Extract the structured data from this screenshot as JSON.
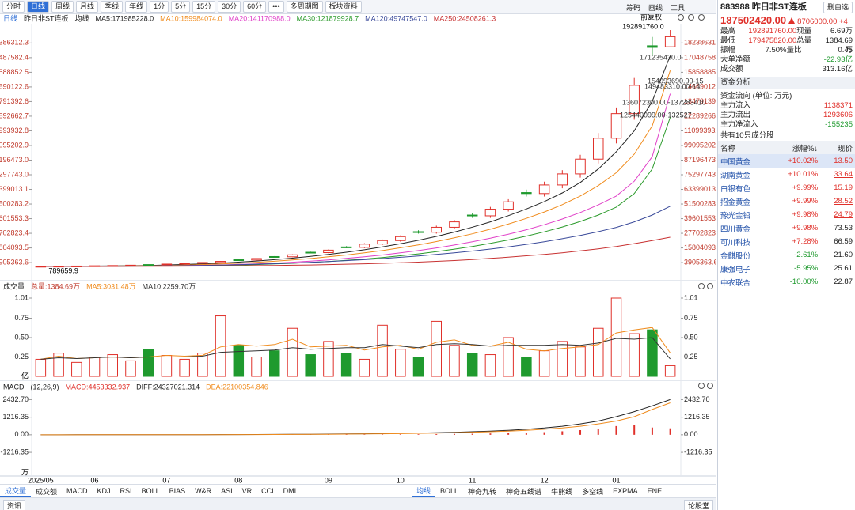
{
  "toolbar": {
    "periods": [
      "分时",
      "日线",
      "周线",
      "月线",
      "季线",
      "年线",
      "1分",
      "5分",
      "15分",
      "30分",
      "60分"
    ],
    "more": "•••",
    "multi": "多周期图",
    "sector": "板块资料",
    "right": [
      "筹码",
      "画线",
      "工具"
    ]
  },
  "chart_data": [
    {
      "type": "candlestick",
      "period": "日线",
      "title": "昨日非ST连板",
      "ma_label": "均线",
      "adjust": "前复权",
      "categories": [
        "2025/05",
        null,
        null,
        "06",
        null,
        null,
        null,
        "07",
        null,
        null,
        null,
        "08",
        null,
        null,
        null,
        null,
        "09",
        null,
        null,
        null,
        "10",
        null,
        null,
        null,
        "11",
        null,
        null,
        null,
        "12",
        null,
        null,
        null,
        "01",
        null,
        null,
        null
      ],
      "open": [
        820000,
        900000,
        1000000,
        1150000,
        1300000,
        1500000,
        2300000,
        2200000,
        2700000,
        3400000,
        4000000,
        6200000,
        6000000,
        8800000,
        8600000,
        12300000,
        12000000,
        16600000,
        16300000,
        19000000,
        21800000,
        29000000,
        28600000,
        32600000,
        42500000,
        41900000,
        47300000,
        60800000,
        60000000,
        67000000,
        76000000,
        88000000,
        105000000,
        125000000,
        180100000,
        179300000
      ],
      "high": [
        936000,
        1040000,
        1144000,
        1352000,
        1560000,
        1872000,
        2392000,
        2808000,
        3432000,
        4160000,
        5096000,
        6448000,
        7488000,
        9152000,
        10608000,
        12792000,
        14560000,
        17264000,
        19656000,
        22672000,
        26000000,
        30160000,
        33904000,
        38480000,
        44200000,
        49192000,
        55432000,
        63232000,
        69680000,
        79040000,
        91520000,
        109200000,
        130000000,
        153920000,
        187304000,
        192891760
      ],
      "low": [
        789659.9,
        864000,
        960000,
        1104000,
        1248000,
        1440000,
        2112000,
        2112000,
        2592000,
        3264000,
        3840000,
        5760000,
        5760000,
        8256000,
        8256000,
        11520000,
        11520000,
        15648000,
        15648000,
        18240000,
        20928000,
        27456000,
        27456000,
        31296000,
        40224000,
        40224000,
        45408000,
        57600000,
        57600000,
        64320000,
        72960000,
        84480000,
        100800000,
        120000000,
        171644563,
        179475820
      ],
      "close": [
        900000,
        1000000,
        1100000,
        1300000,
        1500000,
        1800000,
        2200000,
        2700000,
        3300000,
        4000000,
        4900000,
        6000000,
        7200000,
        8600000,
        10200000,
        12000000,
        14000000,
        16300000,
        18900000,
        21800000,
        25000000,
        28600000,
        32600000,
        37000000,
        41900000,
        47300000,
        53300000,
        60000000,
        67000000,
        76000000,
        88000000,
        105000000,
        125000000,
        148000000,
        178796420,
        187502420
      ],
      "up_color": "#e0302a",
      "down_color": "#1f9a2e",
      "ylim": [
        -7600000,
        192900000
      ],
      "yticks": [
        3905363.6,
        15804093.5,
        27702823.4,
        39601553.3,
        51500283.2,
        63399013.1,
        {
          "value": 75297743,
          "label": "75297743.0"
        },
        {
          "value": 87196473,
          "label": "87196473.0"
        },
        99095202.9,
        110993932.8,
        122892662.7,
        134791392.6,
        146690122.6,
        158588852.5,
        170487582.4,
        182386312.3
      ],
      "series": [
        {
          "name": "MA5:171985228.0",
          "color": "#222222",
          "values": [
            900000,
            950000,
            1000000,
            1100000,
            1200000,
            1400000,
            1600000,
            2000000,
            2400000,
            2900000,
            3500000,
            4300000,
            5200000,
            6300000,
            7500000,
            8900000,
            10500000,
            12300000,
            14300000,
            16600000,
            19200000,
            22000000,
            25200000,
            28700000,
            32700000,
            37000000,
            42000000,
            47500000,
            53500000,
            60500000,
            69000000,
            80000000,
            94000000,
            111000000,
            135000000,
            171985228
          ]
        },
        {
          "name": "MA10:159984074.0",
          "color": "#f08c1e",
          "values": [
            900000,
            920000,
            960000,
            1000000,
            1100000,
            1200000,
            1350000,
            1600000,
            1900000,
            2300000,
            2800000,
            3400000,
            4100000,
            5000000,
            6000000,
            7200000,
            8600000,
            10100000,
            11800000,
            13700000,
            15900000,
            18300000,
            21000000,
            24000000,
            27300000,
            31000000,
            35200000,
            39800000,
            45000000,
            51000000,
            58000000,
            66500000,
            77000000,
            92000000,
            115000000,
            159984074
          ]
        },
        {
          "name": "MA20:141170988.0",
          "color": "#e040c8",
          "values": [
            900000,
            910000,
            930000,
            960000,
            1000000,
            1050000,
            1120000,
            1250000,
            1450000,
            1700000,
            2000000,
            2400000,
            2900000,
            3500000,
            4200000,
            5100000,
            6100000,
            7300000,
            8600000,
            10100000,
            11800000,
            13700000,
            15800000,
            18200000,
            20800000,
            23700000,
            27000000,
            30600000,
            34700000,
            39300000,
            44600000,
            50800000,
            58000000,
            70000000,
            90000000,
            141170988
          ]
        },
        {
          "name": "MA30:121879928.7",
          "color": "#2a9a2a",
          "values": [
            900000,
            900000,
            910000,
            930000,
            960000,
            1000000,
            1050000,
            1130000,
            1250000,
            1400000,
            1600000,
            1900000,
            2300000,
            2800000,
            3300000,
            4000000,
            4800000,
            5700000,
            6800000,
            8000000,
            9400000,
            11000000,
            12800000,
            14800000,
            17000000,
            19500000,
            22300000,
            25400000,
            28900000,
            32800000,
            37300000,
            42500000,
            49000000,
            60000000,
            80000000,
            121879928.7
          ]
        },
        {
          "name": "MA120:49747547.0",
          "color": "#3a4a9a",
          "values": [
            800000,
            820000,
            850000,
            900000,
            950000,
            1000000,
            1100000,
            1200000,
            1400000,
            1600000,
            1900000,
            2200000,
            2600000,
            3000000,
            3500000,
            4100000,
            4800000,
            5500000,
            6300000,
            7200000,
            8200000,
            9300000,
            10500000,
            11800000,
            13300000,
            14900000,
            16700000,
            18700000,
            20900000,
            23300000,
            26000000,
            29000000,
            32500000,
            37000000,
            42500000,
            49747547
          ]
        },
        {
          "name": "MA250:24508261.3",
          "color": "#c83232",
          "values": [
            800000,
            800000,
            810000,
            830000,
            850000,
            880000,
            920000,
            970000,
            1030000,
            1100000,
            1200000,
            1320000,
            1460000,
            1620000,
            1800000,
            2000000,
            2300000,
            2600000,
            2950000,
            3350000,
            3800000,
            4300000,
            4900000,
            5600000,
            6400000,
            7300000,
            8300000,
            9400000,
            10600000,
            11900000,
            13400000,
            15100000,
            17000000,
            19300000,
            21800000,
            24508261.3
          ]
        }
      ],
      "high_label": "192891760.0",
      "low_label": "789659.9",
      "annotations": [
        "171235430.0",
        "154093690.00-15",
        "149483310.00-14",
        "136072300.00-137283410",
        "125440099.00-132527"
      ]
    },
    {
      "type": "bar",
      "title": "成交量",
      "total": "总量:1384.69万",
      "unit": "亿",
      "values": [
        0.22,
        0.3,
        0.18,
        0.25,
        0.28,
        0.2,
        0.35,
        0.27,
        0.22,
        0.3,
        0.78,
        0.4,
        0.25,
        0.33,
        0.62,
        0.28,
        0.45,
        0.3,
        0.22,
        0.66,
        0.35,
        0.24,
        0.71,
        0.4,
        0.3,
        0.28,
        0.5,
        0.25,
        0.33,
        0.45,
        0.38,
        0.62,
        1.01,
        0.55,
        0.6,
        0.138469
      ],
      "ylim": [
        0,
        1.01
      ],
      "yticks": [
        0.25,
        {
          "value": 0.5,
          "label": "0.50"
        },
        0.75,
        1.01
      ],
      "series": [
        {
          "name": "MA5:3031.48万",
          "color": "#f08c1e",
          "values": [
            0.22,
            0.26,
            0.23,
            0.24,
            0.25,
            0.24,
            0.25,
            0.27,
            0.26,
            0.27,
            0.38,
            0.41,
            0.39,
            0.41,
            0.48,
            0.38,
            0.39,
            0.4,
            0.34,
            0.38,
            0.4,
            0.35,
            0.44,
            0.47,
            0.4,
            0.39,
            0.44,
            0.35,
            0.33,
            0.36,
            0.38,
            0.41,
            0.56,
            0.6,
            0.63,
            0.3031481
          ]
        },
        {
          "name": "MA10:2259.70万",
          "color": "#333333",
          "values": [
            0.22,
            0.24,
            0.23,
            0.24,
            0.25,
            0.24,
            0.25,
            0.25,
            0.25,
            0.26,
            0.31,
            0.32,
            0.33,
            0.34,
            0.37,
            0.35,
            0.36,
            0.37,
            0.37,
            0.41,
            0.39,
            0.37,
            0.41,
            0.42,
            0.41,
            0.39,
            0.4,
            0.4,
            0.4,
            0.41,
            0.4,
            0.43,
            0.49,
            0.48,
            0.5,
            0.22597
          ]
        }
      ]
    },
    {
      "type": "combo",
      "title": "MACD",
      "params": "(12,26,9)",
      "bar_name": "MACD:4453332.937",
      "color": "#e0302a",
      "unit": "万",
      "values": [
        0,
        0,
        2,
        0,
        2,
        2,
        2,
        2,
        4,
        4,
        6,
        6,
        8,
        10,
        12,
        14,
        18,
        20,
        24,
        28,
        36,
        40,
        50,
        60,
        70,
        90,
        110,
        140,
        180,
        240,
        320,
        400,
        600,
        700,
        500,
        445.3332937
      ],
      "ylim": [
        -2744,
        3111
      ],
      "yticks": [
        {
          "value": -1216.35,
          "label": "-1216.35"
        },
        {
          "value": 0,
          "label": "0.00"
        },
        1216.35,
        {
          "value": 2432.7,
          "label": "2432.70"
        }
      ],
      "series": [
        {
          "name": "DIFF:24327021.314",
          "color": "#222222",
          "values": [
            0,
            0,
            1,
            1,
            2,
            3,
            4,
            5,
            7,
            9,
            12,
            15,
            19,
            24,
            30,
            37,
            46,
            56,
            68,
            82,
            100,
            120,
            145,
            175,
            210,
            255,
            310,
            380,
            470,
            590,
            750,
            950,
            1250,
            1600,
            2000,
            2432.7021314
          ]
        },
        {
          "name": "DEA:22100354.846",
          "color": "#f08c1e",
          "values": [
            0,
            0,
            0,
            1,
            1,
            2,
            3,
            4,
            5,
            7,
            9,
            12,
            15,
            19,
            24,
            30,
            37,
            46,
            56,
            68,
            82,
            100,
            120,
            145,
            175,
            210,
            255,
            310,
            380,
            470,
            590,
            750,
            950,
            1250,
            1750,
            2210.0354846
          ]
        }
      ]
    }
  ],
  "indicator_tabs": [
    "成交量",
    "成交额",
    "MACD",
    "KDJ",
    "RSI",
    "BOLL",
    "BIAS",
    "W&R",
    "ASI",
    "VR",
    "CCI",
    "DMI"
  ],
  "overlay_tabs": [
    "均线",
    "BOLL",
    "神奇九转",
    "神奇五线谱",
    "牛熊线",
    "多空线",
    "EXPMA",
    "ENE"
  ],
  "footer": {
    "left": "资讯",
    "right": "论股堂"
  },
  "quote": {
    "code": "883988",
    "name": "昨日非ST连板",
    "button": "删自选",
    "price": "187502420.00",
    "change": "8706000.00",
    "count": "+4",
    "stats": [
      [
        "最高",
        "192891760.00",
        "现量",
        "6.69万"
      ],
      [
        "最低",
        "179475820.00",
        "总量",
        "1384.69万"
      ],
      [
        "振幅",
        "7.50%",
        "量比",
        "0.45"
      ]
    ],
    "extra": [
      [
        "大单净额",
        "-22.93亿"
      ],
      [
        "成交额",
        "313.16亿"
      ]
    ]
  },
  "fund": {
    "title": "资金分析",
    "unit": "资金流向 (单位: 万元)",
    "rows": [
      [
        "主力流入",
        "1138371"
      ],
      [
        "主力流出",
        "1293606"
      ],
      [
        "主力净流入",
        "-155235"
      ]
    ]
  },
  "components": {
    "title": "共有10只成分股",
    "headers": [
      "名称",
      "涨幅%↓",
      "现价"
    ],
    "rows": [
      [
        "中国黄金",
        "+10.02%",
        "13.50"
      ],
      [
        "湖南黄金",
        "+10.01%",
        "33.64"
      ],
      [
        "白银有色",
        "+9.99%",
        "15.19"
      ],
      [
        "招金黄金",
        "+9.99%",
        "28.52"
      ],
      [
        "豫光金铅",
        "+9.98%",
        "24.79"
      ],
      [
        "四川黄金",
        "+9.98%",
        "73.53"
      ],
      [
        "可川科技",
        "+7.28%",
        "66.59"
      ],
      [
        "金麒股份",
        "-2.61%",
        "21.60"
      ],
      [
        "康强电子",
        "-5.95%",
        "25.61"
      ],
      [
        "中农联合",
        "-10.00%",
        "22.87"
      ]
    ]
  }
}
